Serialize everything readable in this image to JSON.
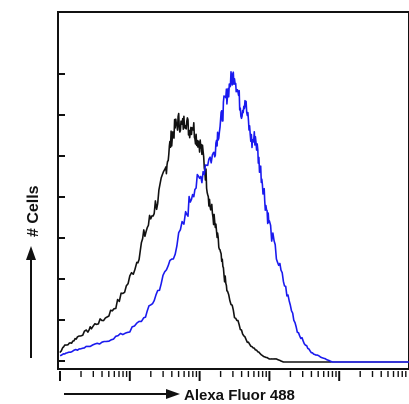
{
  "chart_data": {
    "type": "line",
    "title": "",
    "xlabel": "Alexa Fluor 488",
    "ylabel": "# Cells",
    "x_scale": "log",
    "xlim": [
      0,
      100
    ],
    "ylim": [
      0,
      100
    ],
    "grid": false,
    "legend": "none",
    "series": [
      {
        "color": "#111111",
        "x": [
          0,
          1,
          3,
          5,
          8,
          10,
          13,
          16,
          19,
          22,
          24,
          26,
          28,
          30,
          31,
          32,
          33,
          34,
          35,
          36,
          37,
          38,
          39,
          40,
          41,
          42,
          43,
          44,
          45,
          46,
          47,
          48,
          50,
          52,
          54,
          56,
          58,
          60,
          62,
          64,
          68,
          75,
          85,
          100
        ],
        "values": [
          3,
          5,
          6,
          8,
          10,
          12,
          14,
          18,
          24,
          32,
          40,
          46,
          52,
          60,
          66,
          72,
          75,
          77,
          75,
          78,
          74,
          76,
          72,
          70,
          66,
          58,
          50,
          46,
          40,
          34,
          28,
          22,
          15,
          10,
          6,
          4,
          2,
          1,
          1,
          0,
          0,
          0,
          0,
          0
        ]
      },
      {
        "color": "#1a1aee",
        "x": [
          0,
          2,
          5,
          8,
          12,
          16,
          20,
          24,
          27,
          30,
          33,
          36,
          38,
          40,
          42,
          44,
          45,
          46,
          47,
          48,
          49,
          50,
          51,
          52,
          53,
          54,
          55,
          56,
          57,
          58,
          59,
          60,
          62,
          64,
          66,
          68,
          70,
          72,
          74,
          76,
          78,
          82,
          90,
          100
        ],
        "values": [
          2,
          3,
          4,
          5,
          6,
          8,
          10,
          14,
          20,
          28,
          36,
          46,
          55,
          58,
          64,
          66,
          72,
          76,
          82,
          86,
          90,
          92,
          86,
          80,
          84,
          76,
          70,
          72,
          64,
          58,
          50,
          44,
          34,
          26,
          18,
          10,
          6,
          3,
          2,
          1,
          0,
          0,
          0,
          0
        ]
      }
    ]
  }
}
